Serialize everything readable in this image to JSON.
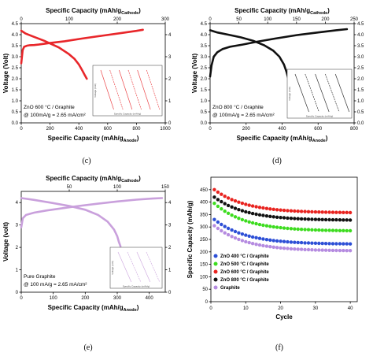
{
  "panel_labels": [
    "(c)",
    "(d)",
    "(e)",
    "(f)"
  ],
  "chart_data": [
    {
      "id": "c",
      "type": "line",
      "color": "#e8262a",
      "top_xlabel": "Specific Capacity (mAh/g",
      "top_xlabel_sub": "Cathode",
      "bottom_xlabel": "Specific Capacity (mAh/g",
      "bottom_xlabel_sub": "Anode",
      "ylabel": "Voltage (Volt)",
      "xlim": [
        0,
        1000
      ],
      "top_xlim": [
        0,
        300
      ],
      "ylim": [
        0,
        4.5
      ],
      "xticks": [
        "0",
        "200",
        "400",
        "600",
        "800",
        "1000"
      ],
      "top_xticks": [
        "0",
        "100",
        "200",
        "300"
      ],
      "yticks": [
        "0.0",
        "0.5",
        "1.0",
        "1.5",
        "2.0",
        "2.5",
        "3.0",
        "3.5",
        "4.0",
        "4.5"
      ],
      "right_yticks": [
        "0",
        "1",
        "2",
        "3",
        "4"
      ],
      "annotation_lines": [
        "ZnO 600 °C / Graphite",
        "@ 100mA/g = 2.65 mA/cm²"
      ],
      "charge": {
        "x": [
          0,
          10,
          20,
          40,
          60,
          90,
          120,
          200,
          300,
          420,
          560,
          700,
          800,
          845
        ],
        "y": [
          2.7,
          3.3,
          3.45,
          3.5,
          3.52,
          3.53,
          3.55,
          3.62,
          3.7,
          3.82,
          3.95,
          4.08,
          4.17,
          4.22
        ]
      },
      "discharge": {
        "x": [
          0,
          30,
          80,
          160,
          260,
          330,
          370,
          400,
          420,
          440,
          455
        ],
        "y": [
          4.18,
          4.05,
          3.92,
          3.72,
          3.42,
          3.12,
          2.9,
          2.65,
          2.42,
          2.18,
          2.0
        ]
      },
      "inset": {
        "xlabel": "Specific Capacity (mAh/g)",
        "ylabel": "Voltage (Volt)",
        "lines": 6
      }
    },
    {
      "id": "d",
      "type": "line",
      "color": "#111111",
      "top_xlabel": "Specific Capacity (mAh/g",
      "top_xlabel_sub": "Cathode",
      "bottom_xlabel": "Specific Capacity (mAh/g",
      "bottom_xlabel_sub": "Anode",
      "ylabel": "Voltage (Volt)",
      "xlim": [
        0,
        800
      ],
      "top_xlim": [
        0,
        250
      ],
      "ylim": [
        0,
        4.5
      ],
      "xticks": [
        "0",
        "200",
        "400",
        "600",
        "800"
      ],
      "top_xticks": [
        "0",
        "50",
        "100",
        "150",
        "200",
        "250"
      ],
      "yticks": [
        "0.0",
        "0.5",
        "1.0",
        "1.5",
        "2.0",
        "2.5",
        "3.0",
        "3.5",
        "4.0",
        "4.5"
      ],
      "right_yticks": [
        "0.0",
        "0.5",
        "1.0",
        "1.5",
        "2.0",
        "2.5",
        "3.0",
        "3.5",
        "4.0",
        "4.5"
      ],
      "annotation_lines": [
        "ZnO 800 °C / Graphite",
        "@ 100mA/g = 2.65 mA/cm²"
      ],
      "charge": {
        "x": [
          0,
          8,
          20,
          40,
          70,
          110,
          180,
          260,
          360,
          480,
          600,
          700,
          760
        ],
        "y": [
          2.1,
          2.6,
          3.0,
          3.2,
          3.35,
          3.45,
          3.55,
          3.68,
          3.82,
          3.98,
          4.1,
          4.2,
          4.25
        ]
      },
      "discharge": {
        "x": [
          0,
          40,
          100,
          170,
          240,
          300,
          350,
          385,
          410,
          425,
          435
        ],
        "y": [
          4.2,
          4.1,
          4.0,
          3.88,
          3.72,
          3.52,
          3.28,
          3.0,
          2.65,
          2.3,
          2.0
        ]
      },
      "inset": {
        "xlabel": "Specific Capacity (mAh/g)",
        "ylabel": "Voltage (Volt)",
        "lines": 5
      }
    },
    {
      "id": "e",
      "type": "line",
      "color": "#c9a0dc",
      "top_xlabel": "Specific Capacity (mAh/g",
      "top_xlabel_sub": "Cathode",
      "bottom_xlabel": "Specific Capacity (mAh/g",
      "bottom_xlabel_sub": "Anode",
      "ylabel": "Voltage (volt)",
      "xlim": [
        0,
        450
      ],
      "top_xlim": [
        0,
        150
      ],
      "ylim": [
        0,
        4.5
      ],
      "xticks": [
        "0",
        "100",
        "200",
        "300",
        "400"
      ],
      "top_xticks": [
        "50",
        "100",
        "150"
      ],
      "yticks": [
        "0",
        "1",
        "2",
        "3",
        "4"
      ],
      "right_yticks": [
        "0",
        "1",
        "2",
        "3",
        "4"
      ],
      "annotation_lines": [
        "Pure Graphite",
        "@ 100 mA/g = 2.65 mA/cm²"
      ],
      "charge": {
        "x": [
          0,
          5,
          15,
          40,
          80,
          130,
          180,
          240,
          300,
          360,
          410,
          440
        ],
        "y": [
          2.9,
          3.3,
          3.45,
          3.55,
          3.65,
          3.75,
          3.85,
          3.95,
          4.05,
          4.13,
          4.18,
          4.2
        ]
      },
      "discharge": {
        "x": [
          0,
          40,
          90,
          150,
          200,
          240,
          270,
          290,
          300,
          305,
          310
        ],
        "y": [
          4.2,
          4.12,
          4.0,
          3.85,
          3.68,
          3.45,
          3.15,
          2.8,
          2.5,
          2.25,
          2.05
        ]
      },
      "inset": {
        "xlabel": "Specific Capacity (mAh/g)",
        "ylabel": "Voltage (volt)",
        "lines": 4
      }
    },
    {
      "id": "f",
      "type": "scatter",
      "xlabel": "Cycle",
      "ylabel": "Specific Capacity (mAh/g)",
      "xlim": [
        0,
        42
      ],
      "ylim": [
        0,
        500
      ],
      "xticks": [
        "0",
        "10",
        "20",
        "30",
        "40"
      ],
      "yticks": [
        "0",
        "50",
        "100",
        "150",
        "200",
        "250",
        "300",
        "350",
        "400",
        "450"
      ],
      "legend_position": "bottom-left",
      "series": [
        {
          "name": "ZnO 400 °C / Graphite",
          "color": "#2d4fd6",
          "start": 330,
          "end": 232
        },
        {
          "name": "ZnO 500 °C / Graphite",
          "color": "#3ddc1f",
          "start": 395,
          "end": 285
        },
        {
          "name": "ZnO 600 °C / Graphite",
          "color": "#e8231f",
          "start": 450,
          "end": 358
        },
        {
          "name": "ZnO 800 °C / Graphite",
          "color": "#111111",
          "start": 420,
          "end": 328
        },
        {
          "name": "Graphite",
          "color": "#b58be0",
          "start": 305,
          "end": 205
        }
      ]
    }
  ]
}
